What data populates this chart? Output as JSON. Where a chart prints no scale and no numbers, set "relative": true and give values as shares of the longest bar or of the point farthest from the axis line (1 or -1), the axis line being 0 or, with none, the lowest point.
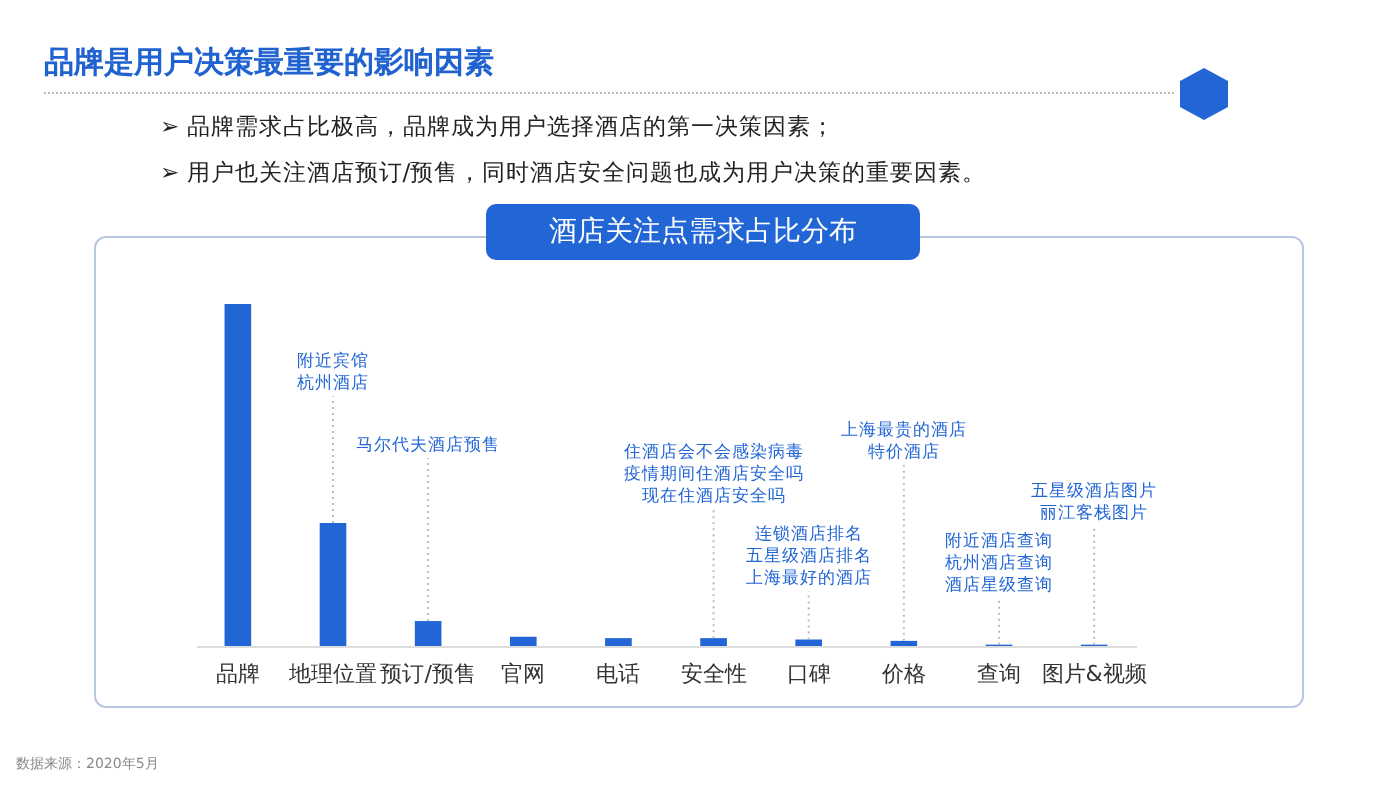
{
  "chart_data": {
    "type": "bar",
    "title": "品牌是用户决策最重要的影响因素",
    "subtitle": "酒店关注点需求占比分布",
    "relative": true,
    "categories": [
      "品牌",
      "地理位置",
      "预订/预售",
      "官网",
      "电话",
      "安全性",
      "口碑",
      "价格",
      "查询",
      "图片&视频"
    ],
    "values": [
      1,
      0.36,
      0.073,
      0.027,
      0.023,
      0.023,
      0.019,
      0.015,
      0.004,
      0.004
    ],
    "color": "#2266d6",
    "annotations": [
      "➢ 品牌需求占比极高，品牌成为用户选择酒店的第一决策因素；",
      "➢ 用户也关注酒店预订/预售，同时酒店安全问题也成为用户决策的重要因素。",
      "附近宾馆",
      "杭州酒店",
      "马尔代夫酒店预售",
      "住酒店会不会感染病毒",
      "疫情期间住酒店安全吗",
      "现在住酒店安全吗",
      "连锁酒店排名",
      "五星级酒店排名",
      "上海最好的酒店",
      "上海最贵的酒店",
      "特价酒店",
      "附近酒店查询",
      "杭州酒店查询",
      "酒店星级查询",
      "五星级酒店图片",
      "丽江客栈图片",
      "数据来源：2020年5月"
    ]
  }
}
